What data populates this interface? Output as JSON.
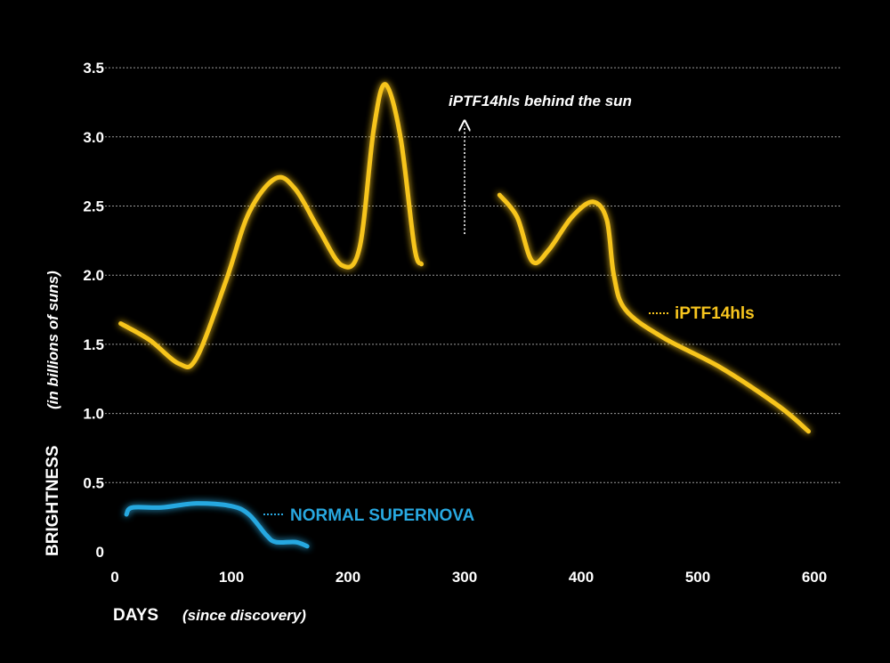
{
  "chart_data": {
    "type": "line",
    "xlabel": "DAYS",
    "xlabel_note": "(since discovery)",
    "ylabel": "BRIGHTNESS",
    "ylabel_note": "(in billions of suns)",
    "xlim": [
      0,
      620
    ],
    "ylim": [
      0,
      3.5
    ],
    "x_ticks": [
      "0",
      "100",
      "200",
      "300",
      "400",
      "500",
      "600"
    ],
    "y_ticks": [
      "0",
      "0.5",
      "1.0",
      "1.5",
      "2.0",
      "2.5",
      "3.0",
      "3.5"
    ],
    "grid": true,
    "series": [
      {
        "name": "iPTF14hls",
        "color": "#f7c51e",
        "segments": [
          [
            [
              5,
              1.65
            ],
            [
              30,
              1.53
            ],
            [
              55,
              1.36
            ],
            [
              70,
              1.4
            ],
            [
              95,
              1.95
            ],
            [
              115,
              2.45
            ],
            [
              138,
              2.7
            ],
            [
              155,
              2.62
            ],
            [
              175,
              2.33
            ],
            [
              195,
              2.07
            ],
            [
              210,
              2.2
            ],
            [
              222,
              3.05
            ],
            [
              232,
              3.38
            ],
            [
              245,
              3.0
            ],
            [
              257,
              2.2
            ],
            [
              263,
              2.08
            ]
          ],
          [
            [
              330,
              2.58
            ],
            [
              345,
              2.42
            ],
            [
              358,
              2.1
            ],
            [
              372,
              2.18
            ],
            [
              392,
              2.42
            ],
            [
              410,
              2.53
            ],
            [
              422,
              2.4
            ],
            [
              428,
              2.0
            ],
            [
              438,
              1.75
            ],
            [
              470,
              1.55
            ],
            [
              520,
              1.33
            ],
            [
              570,
              1.05
            ],
            [
              595,
              0.87
            ]
          ]
        ]
      },
      {
        "name": "NORMAL SUPERNOVA",
        "color": "#28a8e0",
        "segments": [
          [
            [
              10,
              0.27
            ],
            [
              15,
              0.32
            ],
            [
              40,
              0.32
            ],
            [
              70,
              0.35
            ],
            [
              100,
              0.33
            ],
            [
              115,
              0.27
            ],
            [
              130,
              0.12
            ],
            [
              138,
              0.07
            ],
            [
              155,
              0.07
            ],
            [
              165,
              0.04
            ]
          ]
        ]
      }
    ],
    "annotations": [
      {
        "text": "iPTF14hls behind the sun",
        "x": 300,
        "y": 3.3
      },
      {
        "text": "iPTF14hls",
        "x": 462,
        "y": 1.73
      },
      {
        "text": "NORMAL SUPERNOVA",
        "x": 153,
        "y": 0.27
      }
    ]
  }
}
